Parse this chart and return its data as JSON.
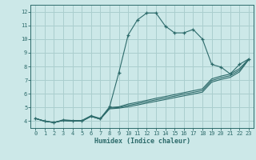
{
  "xlabel": "Humidex (Indice chaleur)",
  "ylabel": "",
  "bg_color": "#cce8e8",
  "grid_color": "#aacece",
  "line_color": "#2d6b6b",
  "xlim": [
    -0.5,
    23.5
  ],
  "ylim": [
    3.5,
    12.5
  ],
  "xticks": [
    0,
    1,
    2,
    3,
    4,
    5,
    6,
    7,
    8,
    9,
    10,
    11,
    12,
    13,
    14,
    15,
    16,
    17,
    18,
    19,
    20,
    21,
    22,
    23
  ],
  "yticks": [
    4,
    5,
    6,
    7,
    8,
    9,
    10,
    11,
    12
  ],
  "main_x": [
    0,
    1,
    2,
    3,
    4,
    5,
    6,
    7,
    8,
    9,
    10,
    11,
    12,
    13,
    14,
    15,
    16,
    17,
    18,
    19,
    20,
    21,
    22,
    23
  ],
  "main_y": [
    4.2,
    4.0,
    3.9,
    4.1,
    4.05,
    4.05,
    4.4,
    4.2,
    5.05,
    7.55,
    10.3,
    11.4,
    11.9,
    11.9,
    10.95,
    10.45,
    10.45,
    10.7,
    10.0,
    8.15,
    7.95,
    7.45,
    8.15,
    8.55
  ],
  "line1_x": [
    0,
    1,
    2,
    3,
    4,
    5,
    6,
    7,
    8,
    9,
    10,
    11,
    12,
    13,
    14,
    15,
    16,
    17,
    18,
    19,
    20,
    21,
    22,
    23
  ],
  "line1_y": [
    4.2,
    4.0,
    3.9,
    4.05,
    4.0,
    4.0,
    4.35,
    4.15,
    4.9,
    4.95,
    5.05,
    5.18,
    5.32,
    5.45,
    5.58,
    5.72,
    5.85,
    5.98,
    6.12,
    6.85,
    7.05,
    7.2,
    7.6,
    8.5
  ],
  "line2_x": [
    0,
    1,
    2,
    3,
    4,
    5,
    6,
    7,
    8,
    9,
    10,
    11,
    12,
    13,
    14,
    15,
    16,
    17,
    18,
    19,
    20,
    21,
    22,
    23
  ],
  "line2_y": [
    4.2,
    4.0,
    3.9,
    4.05,
    4.0,
    4.0,
    4.35,
    4.15,
    4.95,
    5.0,
    5.15,
    5.28,
    5.42,
    5.56,
    5.69,
    5.83,
    5.97,
    6.1,
    6.24,
    6.97,
    7.17,
    7.32,
    7.72,
    8.52
  ],
  "line3_x": [
    0,
    1,
    2,
    3,
    4,
    5,
    6,
    7,
    8,
    9,
    10,
    11,
    12,
    13,
    14,
    15,
    16,
    17,
    18,
    19,
    20,
    21,
    22,
    23
  ],
  "line3_y": [
    4.2,
    4.0,
    3.9,
    4.05,
    4.0,
    4.0,
    4.35,
    4.15,
    5.0,
    5.05,
    5.25,
    5.38,
    5.52,
    5.67,
    5.8,
    5.94,
    6.08,
    6.22,
    6.36,
    7.09,
    7.29,
    7.44,
    7.84,
    8.54
  ]
}
